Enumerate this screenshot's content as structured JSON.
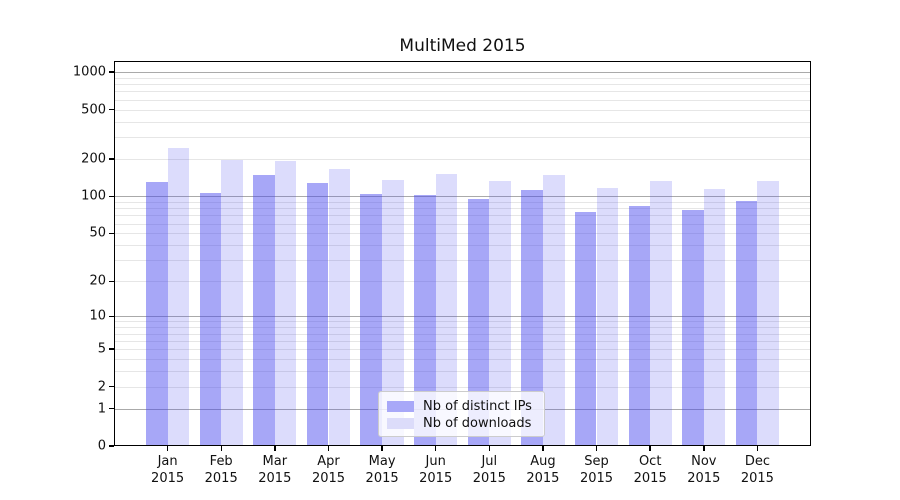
{
  "chart_data": {
    "type": "bar",
    "title": "MultiMed 2015",
    "categories": [
      "Jan 2015",
      "Feb 2015",
      "Mar 2015",
      "Apr 2015",
      "May 2015",
      "Jun 2015",
      "Jul 2015",
      "Aug 2015",
      "Sep 2015",
      "Oct 2015",
      "Nov 2015",
      "Dec 2015"
    ],
    "series": [
      {
        "name": "Nb of distinct IPs",
        "color": "#a8a8f8",
        "fill": "rgba(68,68,238,0.47)",
        "values": [
          130,
          106,
          150,
          127,
          105,
          103,
          95,
          113,
          75,
          83,
          77,
          92
        ]
      },
      {
        "name": "Nb of downloads",
        "color": "#dcdcfa",
        "fill": "rgba(68,68,238,0.19)",
        "values": [
          245,
          196,
          192,
          165,
          136,
          152,
          133,
          148,
          116,
          132,
          115,
          132
        ]
      }
    ],
    "xlabel": "",
    "ylabel": "",
    "yscale": "log1p",
    "ylim": [
      0,
      1230
    ],
    "y_ticks": [
      0,
      1,
      2,
      5,
      10,
      20,
      50,
      100,
      200,
      500,
      1000
    ],
    "y_tick_labels": [
      "0",
      "1",
      "2",
      "5",
      "10",
      "20",
      "50",
      "100",
      "200",
      "500",
      "1000"
    ],
    "grid": "major-and-minor horizontal",
    "grid_minor_color": "#e6e6e6",
    "grid_major_color": "#aaaaaa",
    "legend_position": "lower center inside plot"
  }
}
